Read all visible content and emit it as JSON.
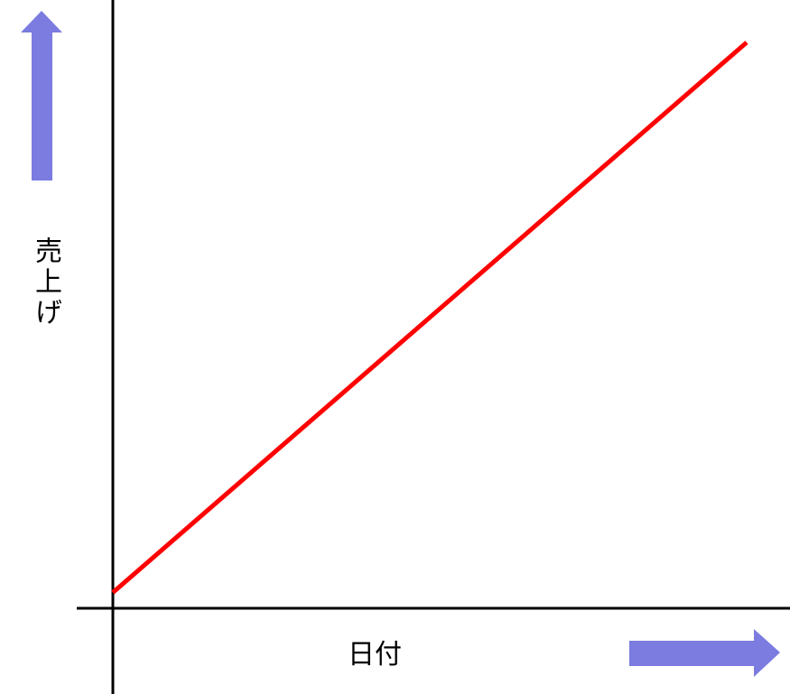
{
  "chart_data": {
    "type": "line",
    "title": "",
    "xlabel": "日付",
    "ylabel": "売上げ",
    "grid": false,
    "ticks": false,
    "xlim": [
      0,
      1
    ],
    "ylim": [
      0,
      1
    ],
    "series": [
      {
        "x": [
          0,
          1
        ],
        "y": [
          0.02,
          1
        ],
        "color": "#ff0000"
      }
    ],
    "arrow_color": "#7b7be0",
    "axis_color": "#000000"
  }
}
